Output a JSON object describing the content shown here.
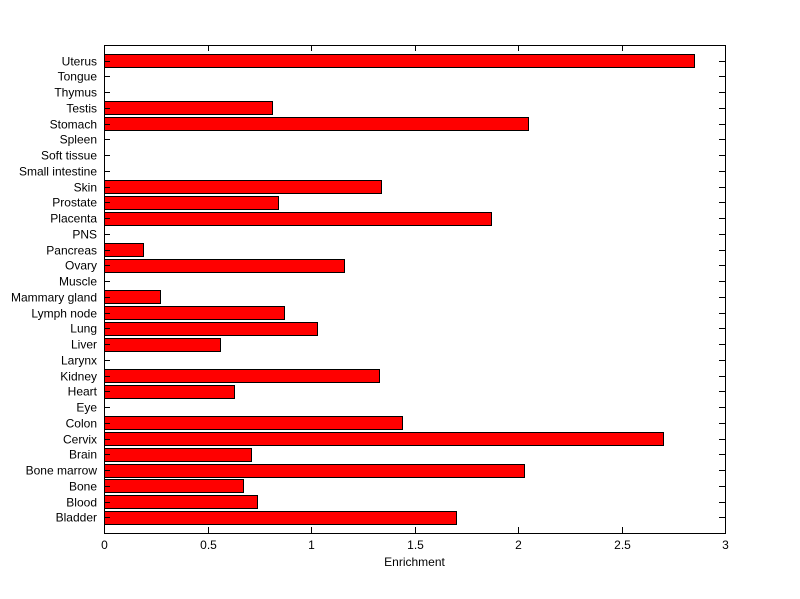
{
  "figure": {
    "background_color": "#ffffff",
    "plot_background_color": "#ffffff"
  },
  "chart_data": {
    "type": "bar",
    "orientation": "horizontal",
    "xlabel": "Enrichment",
    "xlim": [
      0,
      3
    ],
    "xticks": [
      0,
      0.5,
      1,
      1.5,
      2,
      2.5,
      3
    ],
    "xtick_labels": [
      "0",
      "0.5",
      "1",
      "1.5",
      "2",
      "2.5",
      "3"
    ],
    "grid": false,
    "legend": null,
    "box": true,
    "bar_color": "#ff0000",
    "bar_edge_color": "#000000",
    "axis_color": "#000000",
    "categories": [
      "Uterus",
      "Tongue",
      "Thymus",
      "Testis",
      "Stomach",
      "Spleen",
      "Soft tissue",
      "Small intestine",
      "Skin",
      "Prostate",
      "Placenta",
      "PNS",
      "Pancreas",
      "Ovary",
      "Muscle",
      "Mammary gland",
      "Lymph node",
      "Lung",
      "Liver",
      "Larynx",
      "Kidney",
      "Heart",
      "Eye",
      "Colon",
      "Cervix",
      "Brain",
      "Bone marrow",
      "Bone",
      "Blood",
      "Bladder"
    ],
    "values": [
      2.85,
      0,
      0,
      0.81,
      2.05,
      0,
      0,
      0,
      1.34,
      0.84,
      1.87,
      0,
      0.19,
      1.16,
      0,
      0.27,
      0.87,
      1.03,
      0.56,
      0,
      1.33,
      0.63,
      0,
      1.44,
      2.7,
      0.71,
      2.03,
      0.67,
      0.74,
      1.7
    ]
  }
}
